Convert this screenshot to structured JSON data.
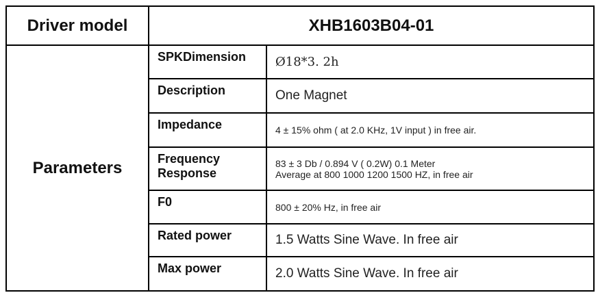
{
  "header": {
    "label": "Driver model",
    "model": "XHB1603B04-01"
  },
  "section_label": "Parameters",
  "rows": [
    {
      "label": "SPKDimension",
      "value": "Ø18*3. 2h"
    },
    {
      "label": "Description",
      "value": "One Magnet"
    },
    {
      "label": "Impedance",
      "value": "4 ± 15% ohm ( at 2.0 KHz,  1V input ) in free air."
    },
    {
      "label": "Frequency Response",
      "value": "83 ± 3 Db / 0.894 V ( 0.2W) 0.1 Meter",
      "value2": "Average at 800 1000 1200 1500 HZ, in free air"
    },
    {
      "label": "F0",
      "value": "800 ± 20% Hz, in free air"
    },
    {
      "label": "Rated power",
      "value": "1.5 Watts Sine Wave. In free air"
    },
    {
      "label": "Max power",
      "value": "2.0 Watts Sine Wave. In free air"
    }
  ]
}
